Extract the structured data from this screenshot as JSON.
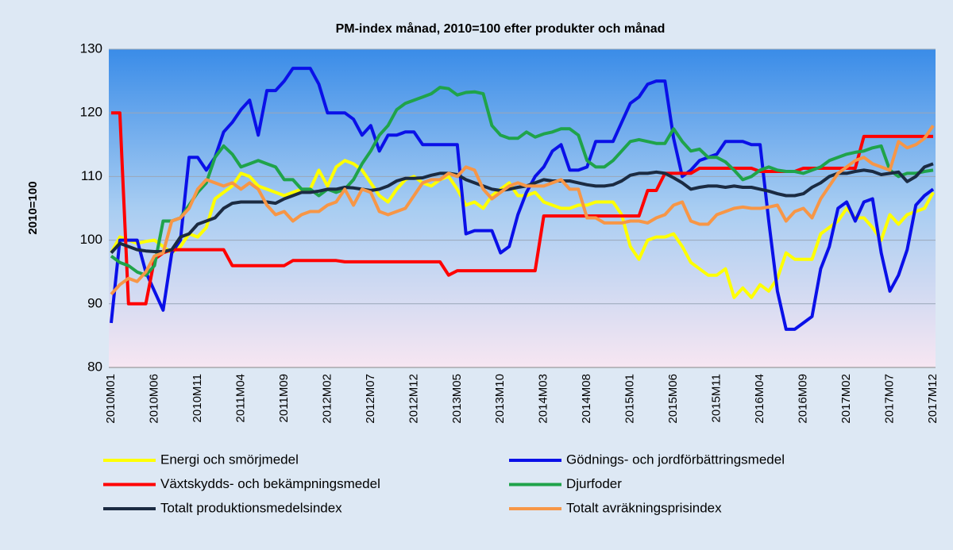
{
  "chart_data": {
    "type": "line",
    "title": "PM-index månad, 2010=100 efter produkter och månad",
    "y_label": "2010=100",
    "categories": [
      "2010M01",
      null,
      null,
      null,
      null,
      "2010M06",
      null,
      null,
      null,
      null,
      "2010M11",
      null,
      null,
      null,
      null,
      "2011M04",
      null,
      null,
      null,
      null,
      "2011M09",
      null,
      null,
      null,
      null,
      "2012M02",
      null,
      null,
      null,
      null,
      "2012M07",
      null,
      null,
      null,
      null,
      "2012M12",
      null,
      null,
      null,
      null,
      "2013M05",
      null,
      null,
      null,
      null,
      "2013M10",
      null,
      null,
      null,
      null,
      "2014M03",
      null,
      null,
      null,
      null,
      "2014M08",
      null,
      null,
      null,
      null,
      "2015M01",
      null,
      null,
      null,
      null,
      "2015M06",
      null,
      null,
      null,
      null,
      "2015M11",
      null,
      null,
      null,
      null,
      "2016M04",
      null,
      null,
      null,
      null,
      "2016M09",
      null,
      null,
      null,
      null,
      "2017M02",
      null,
      null,
      null,
      null,
      "2017M07",
      null,
      null,
      null,
      null,
      "2017M12"
    ],
    "series": [
      {
        "name": "Energi och smörjmedel",
        "color": "#ffff00",
        "values": [
          98,
          100.5,
          100,
          99.5,
          99.8,
          100,
          99,
          98,
          99,
          101,
          100.5,
          102,
          106.5,
          107.5,
          108.5,
          110.5,
          110,
          108.5,
          108,
          107.5,
          107,
          107.5,
          108,
          108,
          111,
          108.5,
          111.5,
          112.5,
          112,
          111,
          109,
          107,
          106,
          108,
          109.5,
          110,
          109,
          108.5,
          109.5,
          110,
          108,
          105.5,
          106,
          105,
          107,
          108,
          109,
          107,
          107,
          107.5,
          106,
          105.5,
          105,
          105,
          105.5,
          105.5,
          106,
          106,
          106,
          104,
          99,
          97,
          100,
          100.5,
          100.5,
          101,
          99,
          96.5,
          95.5,
          94.5,
          94.5,
          95.5,
          91,
          92.5,
          91,
          93,
          92,
          94,
          98,
          97,
          97,
          97,
          101,
          102,
          103,
          105,
          103.5,
          103.5,
          102,
          100,
          104,
          102.5,
          104,
          104.5,
          105,
          107.5
        ]
      },
      {
        "name": "Gödnings- och jordförbättringsmedel",
        "color": "#0a10e8",
        "values": [
          87,
          100,
          100,
          100,
          95,
          92,
          89,
          98,
          100,
          113,
          113,
          111,
          113,
          117,
          118.5,
          120.5,
          122,
          116.5,
          123.5,
          123.5,
          125,
          127,
          127,
          127,
          124.5,
          120,
          120,
          120,
          119,
          116.5,
          118,
          114,
          116.5,
          116.5,
          117,
          117,
          115,
          115,
          115,
          115,
          115,
          101,
          101.5,
          101.5,
          101.5,
          98,
          99,
          104,
          107.5,
          110,
          111.5,
          114,
          115,
          111,
          111,
          111.5,
          115.5,
          115.5,
          115.5,
          118.5,
          121.5,
          122.5,
          124.5,
          125,
          125,
          116,
          110,
          111,
          112.5,
          113,
          113.5,
          115.5,
          115.5,
          115.5,
          115,
          115,
          103,
          92,
          86,
          86,
          87,
          88,
          95.5,
          99,
          105,
          106,
          103,
          106,
          106.5,
          98,
          92,
          94.5,
          98.5,
          105.5,
          107,
          108
        ]
      },
      {
        "name": "Växtskydds- och bekämpningsmedel",
        "color": "#ff0000",
        "values": [
          120,
          120,
          90,
          90,
          90,
          97,
          98,
          98.5,
          98.5,
          98.5,
          98.5,
          98.5,
          98.5,
          98.5,
          96,
          96,
          96,
          96,
          96,
          96,
          96,
          96.8,
          96.8,
          96.8,
          96.8,
          96.8,
          96.8,
          96.6,
          96.6,
          96.6,
          96.6,
          96.6,
          96.6,
          96.6,
          96.6,
          96.6,
          96.6,
          96.6,
          96.6,
          94.5,
          95.2,
          95.2,
          95.2,
          95.2,
          95.2,
          95.2,
          95.2,
          95.2,
          95.2,
          95.2,
          103.8,
          103.8,
          103.8,
          103.8,
          103.8,
          103.8,
          103.8,
          103.8,
          103.8,
          103.8,
          103.8,
          103.8,
          107.8,
          107.8,
          110.5,
          110.5,
          110.5,
          110.5,
          111.3,
          111.3,
          111.3,
          111.3,
          111.3,
          111.3,
          111.3,
          110.8,
          110.8,
          110.8,
          110.8,
          110.8,
          111.3,
          111.3,
          111.3,
          111.3,
          111.3,
          111.3,
          111.3,
          116.3,
          116.3,
          116.3,
          116.3,
          116.3,
          116.3,
          116.3,
          116.3,
          116.3
        ]
      },
      {
        "name": "Djurfoder",
        "color": "#1fa34a",
        "values": [
          97.5,
          96.5,
          96,
          95,
          94.5,
          96,
          103,
          103,
          103.5,
          105.5,
          107.5,
          109,
          113,
          114.8,
          113.5,
          111.5,
          112,
          112.5,
          112,
          111.5,
          109.5,
          109.5,
          108,
          108,
          107,
          108,
          107.5,
          108,
          109.5,
          112,
          114,
          116.5,
          118,
          120.5,
          121.5,
          122,
          122.5,
          123,
          124,
          123.8,
          122.8,
          123.2,
          123.3,
          123,
          118,
          116.5,
          116,
          116,
          117,
          116.2,
          116.7,
          117,
          117.5,
          117.5,
          116.5,
          112.5,
          111.5,
          111.5,
          112.5,
          114,
          115.5,
          115.8,
          115.5,
          115.2,
          115.2,
          117.5,
          115.5,
          114,
          114.3,
          113,
          113,
          112.3,
          111,
          109.5,
          110,
          111,
          111.5,
          111,
          110.8,
          110.8,
          110.5,
          111,
          111.5,
          112.5,
          113,
          113.5,
          113.8,
          114,
          114.5,
          114.8,
          111,
          110,
          110.5,
          110.5,
          110.8,
          111
        ]
      },
      {
        "name": "Totalt produktionsmedelsindex",
        "color": "#1b2b42",
        "values": [
          98,
          99.5,
          99,
          98.5,
          98.3,
          98.2,
          98.2,
          98.5,
          100.5,
          101,
          102.5,
          103,
          103.5,
          105,
          105.8,
          106,
          106,
          106,
          106,
          105.8,
          106.5,
          107,
          107.5,
          107.5,
          107.7,
          108,
          108,
          108.3,
          108.2,
          108,
          107.8,
          108,
          108.5,
          109.3,
          109.7,
          109.7,
          109.8,
          110.2,
          110.5,
          110.5,
          110.3,
          109.5,
          109,
          108.5,
          108,
          107.8,
          108,
          108.3,
          108.5,
          109,
          109.5,
          109.3,
          109.3,
          109.3,
          109,
          108.7,
          108.5,
          108.5,
          108.7,
          109.3,
          110.2,
          110.5,
          110.5,
          110.7,
          110.5,
          109.8,
          109,
          108,
          108.3,
          108.5,
          108.5,
          108.3,
          108.5,
          108.3,
          108.3,
          108,
          107.7,
          107.3,
          107,
          107,
          107.3,
          108.3,
          109,
          110,
          110.5,
          110.5,
          110.8,
          111,
          110.8,
          110.3,
          110.5,
          110.7,
          109.2,
          110,
          111.5,
          112
        ]
      },
      {
        "name": "Totalt avräkningsprisindex",
        "color": "#f79646",
        "values": [
          91.5,
          93,
          94,
          93.5,
          95,
          97.5,
          98,
          103,
          103.5,
          105,
          108,
          109.5,
          109,
          108.5,
          109,
          108,
          109,
          108,
          105.5,
          104,
          104.5,
          103,
          104,
          104.5,
          104.5,
          105.5,
          106,
          108,
          105.5,
          108,
          107.5,
          104.5,
          104,
          104.5,
          105,
          107,
          109,
          109.5,
          109.5,
          110.5,
          110,
          111.5,
          111,
          108,
          106.5,
          107.5,
          108.5,
          109,
          108.5,
          108.5,
          108.5,
          109,
          109.5,
          108,
          108,
          103.5,
          103.5,
          102.7,
          102.7,
          102.7,
          103,
          103,
          102.7,
          103.5,
          104,
          105.5,
          106,
          103,
          102.5,
          102.5,
          104,
          104.5,
          105,
          105.2,
          105,
          105,
          105.2,
          105.5,
          103,
          104.5,
          105,
          103.5,
          106.5,
          108.5,
          110.5,
          111.5,
          112.5,
          113,
          112,
          111.5,
          111,
          115.5,
          114.5,
          115,
          116,
          118
        ]
      }
    ],
    "ylim": [
      80,
      130
    ],
    "yticks": [
      80,
      90,
      100,
      110,
      120,
      130
    ],
    "grid": true
  }
}
